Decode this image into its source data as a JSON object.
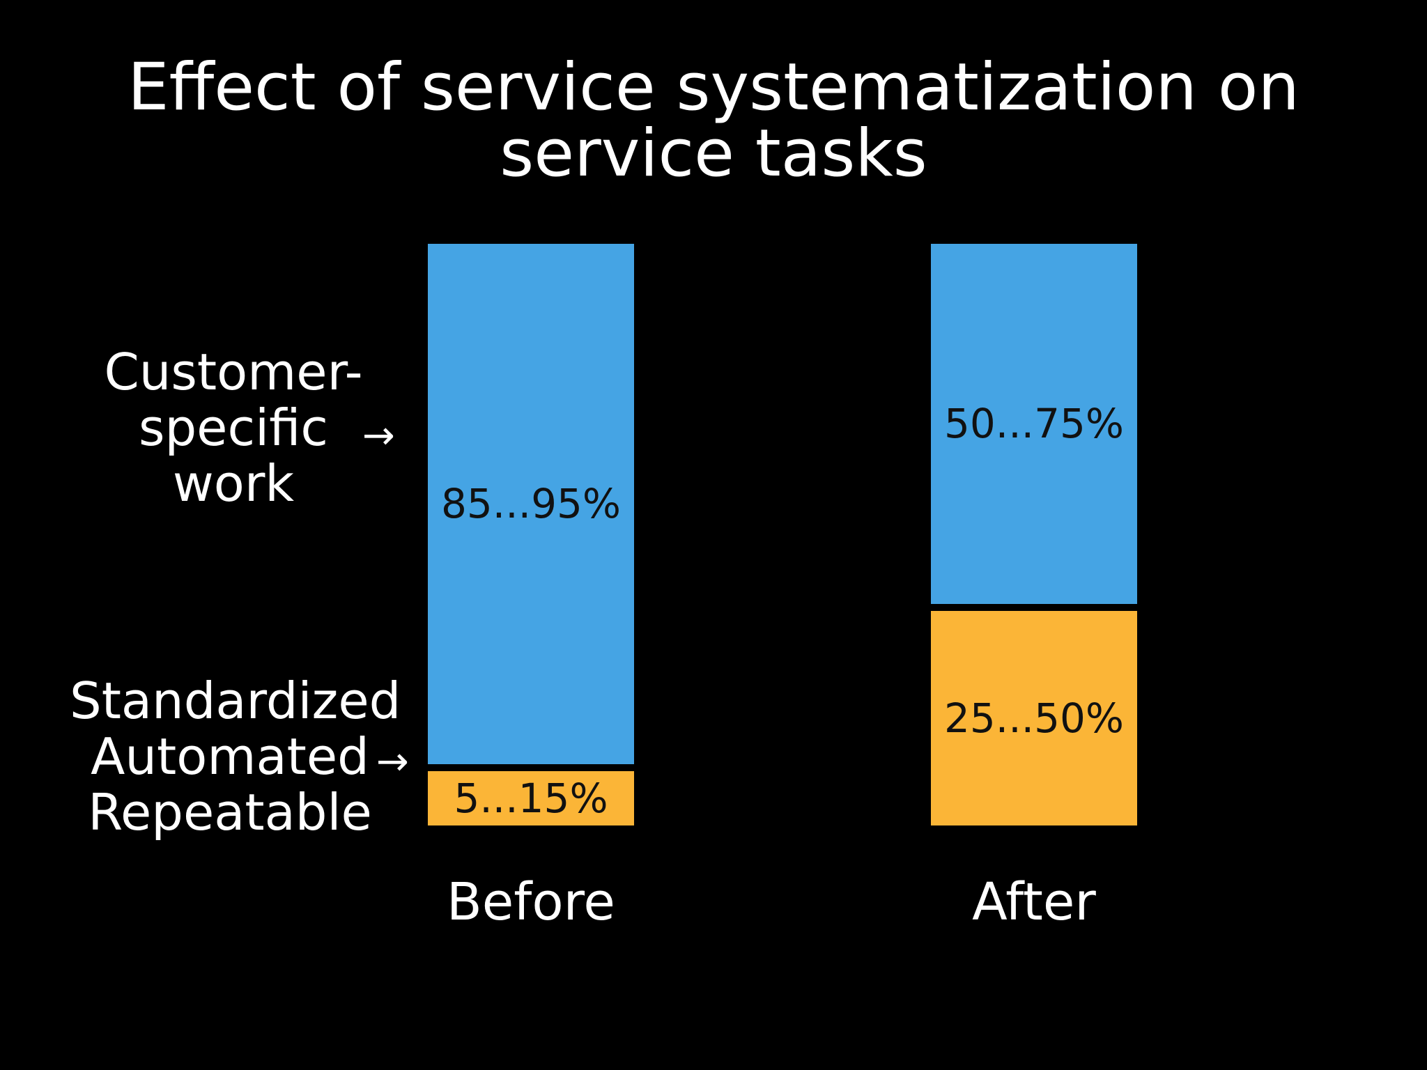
{
  "title_lines": [
    "Effect of service systematization on",
    "service tasks"
  ],
  "colors": {
    "customer_specific": "#45a4e4",
    "standardized": "#fbb537",
    "background": "#000000",
    "label_text": "#111111"
  },
  "side_labels": {
    "customer_specific": [
      "Customer-",
      "specific",
      "work"
    ],
    "standardized": [
      "Standardized",
      "Automated",
      "Repeatable"
    ],
    "arrow": "→"
  },
  "chart_data": {
    "type": "bar",
    "stacked": true,
    "title": "Effect of service systematization on service tasks",
    "categories": [
      "Before",
      "After"
    ],
    "series": [
      {
        "name": "Customer-specific work",
        "values": [
          90,
          62.5
        ],
        "labels": [
          "85...95%",
          "50...75%"
        ]
      },
      {
        "name": "Standardized Automated Repeatable",
        "values": [
          10,
          37.5
        ],
        "labels": [
          "5...15%",
          "25...50%"
        ]
      }
    ],
    "ylim": [
      0,
      100
    ]
  }
}
